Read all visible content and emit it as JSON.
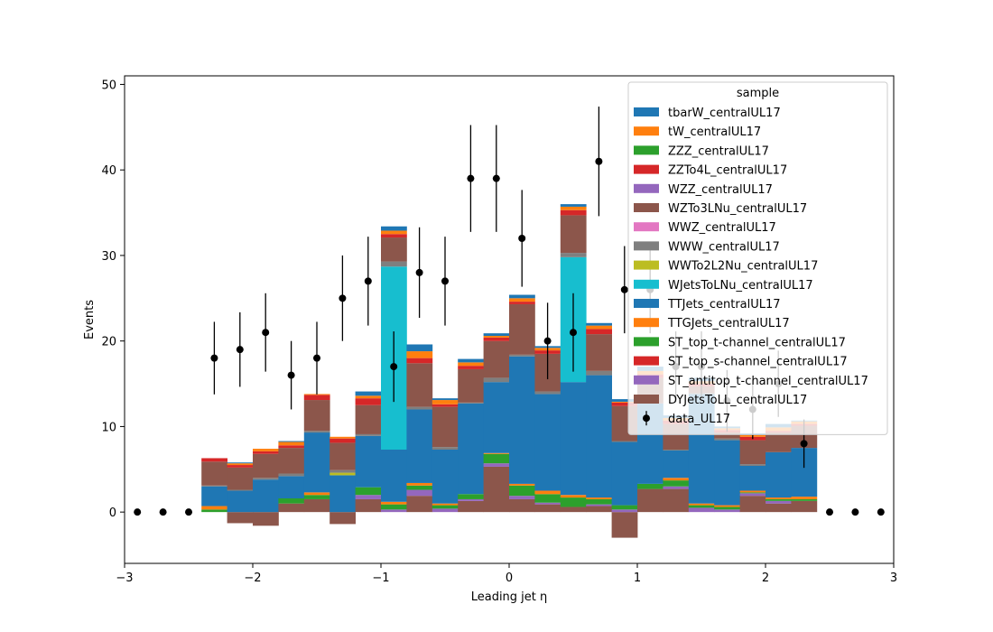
{
  "chart_data": {
    "type": "bar",
    "stacked": true,
    "xlabel": "Leading jet  η",
    "ylabel": "Events",
    "xlim": [
      -3,
      3
    ],
    "ylim": [
      -6,
      51
    ],
    "x_ticks": [
      -3,
      -2,
      -1,
      0,
      1,
      2,
      3
    ],
    "x_tick_labels": [
      "−3",
      "−2",
      "−1",
      "0",
      "1",
      "2",
      "3"
    ],
    "y_ticks": [
      0,
      10,
      20,
      30,
      40,
      50
    ],
    "y_tick_labels": [
      "0",
      "10",
      "20",
      "30",
      "40",
      "50"
    ],
    "bin_edges": [
      -2.4,
      -2.2,
      -2.0,
      -1.8,
      -1.6,
      -1.4,
      -1.2,
      -1.0,
      -0.8,
      -0.6,
      -0.4,
      -0.2,
      0.0,
      0.2,
      0.4,
      0.6,
      0.8,
      1.0,
      1.2,
      1.4,
      1.6,
      1.8,
      2.0,
      2.2,
      2.4
    ],
    "legend": {
      "title": "sample",
      "position": "top-right"
    },
    "series": [
      {
        "name": "DYJetsToLL_centralUL17",
        "color": "#8c564b",
        "values": [
          0,
          -1.3,
          -1.6,
          1.0,
          1.5,
          -1.4,
          1.5,
          0,
          1.9,
          0,
          1.3,
          5.3,
          1.5,
          0.9,
          0.6,
          0.7,
          -3.0,
          2.7,
          2.7,
          0,
          0,
          1.9,
          1.0,
          1.3
        ]
      },
      {
        "name": "ST_antitop_t-channel_centralUL17",
        "color": "#9467bd",
        "values": [
          0,
          0,
          0,
          0,
          0,
          0,
          0.5,
          0.3,
          0.7,
          0.4,
          0.2,
          0.4,
          0.4,
          0.2,
          0,
          0.2,
          0.3,
          0,
          0.3,
          0.5,
          0.3,
          0.3,
          0.3,
          0
        ]
      },
      {
        "name": "ST_top_s-channel_centralUL17",
        "color": "#d62728",
        "values": [
          0,
          0,
          0,
          0,
          0,
          0,
          0,
          0,
          0,
          0,
          0,
          0,
          0,
          0,
          0,
          0,
          0,
          0,
          0,
          0,
          0,
          0,
          0,
          0
        ]
      },
      {
        "name": "ST_top_t-channel_centralUL17",
        "color": "#2ca02c",
        "values": [
          0.3,
          0,
          0,
          0.6,
          0.5,
          0,
          0.9,
          0.6,
          0.5,
          0.4,
          0.6,
          1.1,
          1.2,
          1.0,
          1.1,
          0.6,
          0.5,
          0.6,
          0.7,
          0.3,
          0.3,
          0.1,
          0.2,
          0.2
        ]
      },
      {
        "name": "TTGJets_centralUL17",
        "color": "#ff7f0e",
        "values": [
          0.4,
          0,
          0,
          0,
          0.3,
          0,
          0,
          0.3,
          0.3,
          0.2,
          0,
          0.1,
          0.2,
          0.4,
          0.3,
          0.2,
          0,
          0,
          0.3,
          0.2,
          0.2,
          0.2,
          0.2,
          0.3
        ]
      },
      {
        "name": "TTJets_centralUL17",
        "color": "#1f77b4",
        "values": [
          2.3,
          2.5,
          3.8,
          2.6,
          7.0,
          4.3,
          6.0,
          6.1,
          8.6,
          6.3,
          10.6,
          8.3,
          14.9,
          11.3,
          13.2,
          14.3,
          7.4,
          9.4,
          3.2,
          12.8,
          7.6,
          2.9,
          5.3,
          5.7
        ]
      },
      {
        "name": "WJetsToLNu_centralUL17",
        "color": "#17becf",
        "values": [
          0,
          0,
          0,
          0,
          0,
          0,
          0,
          21.4,
          0,
          0,
          0,
          0,
          0,
          0,
          14.6,
          0,
          0,
          0,
          0,
          0,
          0,
          0,
          0,
          0
        ]
      },
      {
        "name": "WWTo2L2Nu_centralUL17",
        "color": "#bcbd22",
        "values": [
          0,
          0,
          0,
          0,
          0,
          0.3,
          0,
          0,
          0,
          0,
          0,
          0,
          0,
          0,
          0,
          0,
          0,
          0,
          0,
          0,
          0,
          0,
          0,
          0
        ]
      },
      {
        "name": "WWW_centralUL17",
        "color": "#7f7f7f",
        "values": [
          0.1,
          0.1,
          0.2,
          0.3,
          0.2,
          0.3,
          0.2,
          0.6,
          0.3,
          0.3,
          0.1,
          0.5,
          0.2,
          0.3,
          0.5,
          0.5,
          0.1,
          0,
          0.1,
          0.1,
          0.2,
          0.2,
          0,
          0
        ]
      },
      {
        "name": "WWZ_centralUL17",
        "color": "#e377c2",
        "values": [
          0,
          0,
          0,
          0,
          0,
          0,
          0,
          0,
          0,
          0,
          0,
          0,
          0,
          0,
          0,
          0,
          0,
          0,
          0,
          0,
          0,
          0,
          0,
          0
        ]
      },
      {
        "name": "WZTo3LNu_centralUL17",
        "color": "#8c564b",
        "values": [
          2.8,
          2.6,
          2.8,
          3.0,
          3.6,
          3.2,
          3.4,
          2.8,
          5.1,
          4.7,
          3.9,
          4.3,
          5.9,
          4.4,
          4.4,
          4.3,
          4.1,
          3.0,
          3.0,
          0.8,
          0.7,
          2.8,
          2.3,
          2.6
        ]
      },
      {
        "name": "WZZ_centralUL17",
        "color": "#9467bd",
        "values": [
          0,
          0,
          0,
          0,
          0,
          0,
          0,
          0,
          0,
          0,
          0,
          0,
          0,
          0,
          0,
          0,
          0,
          0,
          0,
          0,
          0,
          0,
          0,
          0
        ]
      },
      {
        "name": "ZZTo4L_centralUL17",
        "color": "#d62728",
        "values": [
          0.4,
          0.3,
          0.3,
          0.3,
          0.6,
          0.5,
          0.8,
          0.4,
          0.6,
          0.3,
          0.4,
          0.4,
          0.3,
          0.4,
          0.6,
          0.6,
          0.4,
          0.4,
          0.4,
          0.3,
          0.3,
          0.4,
          0.2,
          0.2
        ]
      },
      {
        "name": "ZZZ_centralUL17",
        "color": "#2ca02c",
        "values": [
          0,
          0,
          0,
          0,
          0,
          0,
          0,
          0,
          0,
          0,
          0,
          0,
          0,
          0,
          0,
          0,
          0,
          0,
          0,
          0,
          0,
          0,
          0,
          0
        ]
      },
      {
        "name": "tW_centralUL17",
        "color": "#ff7f0e",
        "values": [
          0,
          0.2,
          0.3,
          0.4,
          0.1,
          0.2,
          0.3,
          0.4,
          0.8,
          0.5,
          0.4,
          0.2,
          0.4,
          0.3,
          0.4,
          0.4,
          0.1,
          0.4,
          0.3,
          0.3,
          0.2,
          0.2,
          0.4,
          0.3
        ]
      },
      {
        "name": "tbarW_centralUL17",
        "color": "#1f77b4",
        "values": [
          0,
          0.1,
          0,
          0.1,
          0,
          0,
          0.5,
          0.5,
          0.8,
          0.2,
          0.4,
          0.3,
          0.4,
          0.2,
          0.3,
          0.3,
          0.3,
          0.5,
          0.3,
          0.4,
          0.2,
          0.2,
          0.4,
          0.1
        ]
      }
    ],
    "data": {
      "name": "data_UL17",
      "x": [
        -2.9,
        -2.7,
        -2.5,
        -2.3,
        -2.1,
        -1.9,
        -1.7,
        -1.5,
        -1.3,
        -1.1,
        -0.9,
        -0.7,
        -0.5,
        -0.3,
        -0.1,
        0.1,
        0.3,
        0.5,
        0.7,
        0.9,
        1.1,
        1.3,
        1.5,
        1.7,
        1.9,
        2.1,
        2.3,
        2.5,
        2.7,
        2.9
      ],
      "y": [
        0,
        0,
        0,
        18,
        19,
        21,
        16,
        18,
        25,
        27,
        17,
        28,
        27,
        39,
        39,
        32,
        20,
        21,
        41,
        26,
        26,
        17,
        17,
        13,
        12,
        15,
        8,
        0,
        0,
        0
      ]
    }
  }
}
